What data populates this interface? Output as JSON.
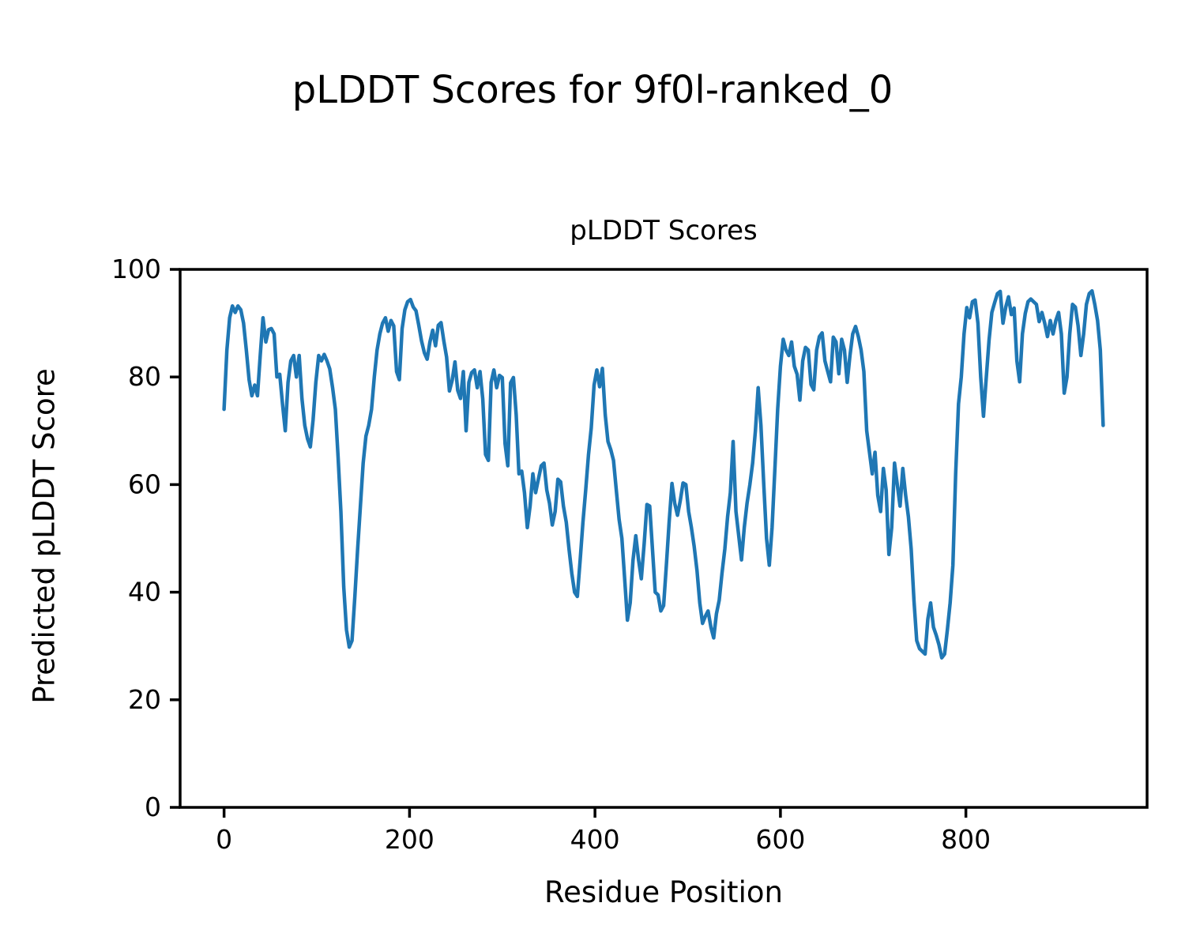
{
  "chart_data": {
    "type": "line",
    "suptitle": "pLDDT Scores for 9f0l-ranked_0",
    "title": "pLDDT Scores",
    "xlabel": "Residue Position",
    "ylabel": "Predicted pLDDT Score",
    "legend": null,
    "grid": false,
    "line_color": "#1f77b4",
    "axis_color": "#000000",
    "background_color": "#ffffff",
    "x_ticks": [
      0,
      200,
      400,
      600,
      800
    ],
    "y_ticks": [
      0,
      20,
      40,
      60,
      80,
      100
    ],
    "ylim": [
      0,
      100
    ],
    "xlim": [
      -47.4,
      995.4
    ],
    "series_name": "pLDDT",
    "x_start": 0,
    "x_step": 3,
    "values": [
      74,
      85,
      91,
      93.2,
      92,
      93.2,
      92.5,
      90,
      85,
      79.5,
      76.5,
      78.5,
      76.5,
      84,
      91,
      86.5,
      88.8,
      89,
      88,
      80,
      80.5,
      75,
      70,
      79,
      83,
      84,
      80,
      84,
      76,
      71,
      68.5,
      67,
      72,
      79,
      84,
      83,
      84.2,
      83,
      81.5,
      78,
      74,
      65,
      55,
      41,
      33,
      29.8,
      31,
      39,
      48,
      56,
      64,
      69,
      71,
      74,
      80,
      85,
      88,
      90,
      91,
      88.5,
      90.5,
      89.5,
      81,
      79.5,
      89,
      92.5,
      94,
      94.4,
      93,
      92.3,
      89.6,
      86.7,
      84.5,
      83.3,
      86.5,
      88.7,
      85.8,
      89.6,
      90.1,
      86.7,
      83.7,
      77.4,
      79.4,
      82.8,
      77.5,
      76,
      81,
      70,
      79,
      80.8,
      81.3,
      78,
      81,
      75.9,
      65.6,
      64.5,
      79,
      81.3,
      78,
      80.3,
      79.9,
      67.6,
      63.5,
      78.9,
      79.9,
      73,
      62,
      62.5,
      58.5,
      52,
      56,
      62,
      58.5,
      61,
      63.5,
      64,
      59,
      56.5,
      52.5,
      55,
      61,
      60.5,
      56,
      53,
      48,
      43.5,
      40,
      39.2,
      46,
      53,
      59,
      65.5,
      70.5,
      78.5,
      81.3,
      78.2,
      81.6,
      73,
      68,
      66.5,
      64.5,
      59,
      53.5,
      50,
      42.5,
      34.8,
      38,
      46,
      50.5,
      46,
      42.5,
      49,
      56.3,
      56,
      48,
      40,
      39.5,
      36.5,
      37.5,
      45,
      53,
      60.2,
      56.5,
      54.3,
      57,
      60.3,
      60,
      55,
      52,
      48.5,
      44,
      38,
      34.2,
      35.5,
      36.5,
      33.5,
      31.5,
      36,
      38.5,
      43.5,
      48,
      54,
      58.5,
      68,
      55,
      50.5,
      46,
      52,
      56.5,
      60,
      64,
      70,
      78,
      71,
      60,
      50,
      45,
      52,
      63,
      74,
      82,
      87,
      85,
      84,
      86.5,
      82,
      80.5,
      75.7,
      83,
      85.5,
      85,
      78.6,
      77.6,
      85,
      87.5,
      88.2,
      83,
      81,
      79.1,
      87.4,
      86.5,
      80.6,
      87,
      85,
      79,
      84,
      88,
      89.4,
      87.5,
      85,
      81,
      70,
      66,
      62,
      66,
      58,
      55,
      63,
      59,
      47,
      52,
      64,
      60,
      56,
      63,
      58,
      54,
      48,
      38.5,
      31,
      29.5,
      29,
      28.5,
      35,
      38,
      33.5,
      32,
      30.2,
      27.8,
      28.5,
      33,
      38,
      45,
      62,
      75,
      80,
      88,
      92.9,
      91,
      94,
      94.3,
      90,
      80,
      72.7,
      80,
      86.9,
      92,
      93.8,
      95.5,
      95.9,
      90,
      93,
      94.9,
      91.6,
      92.8,
      83,
      79.1,
      88,
      91.8,
      94,
      94.5,
      94,
      93.5,
      90.3,
      92,
      90,
      87.5,
      90.5,
      88,
      90.5,
      92,
      88,
      77,
      80,
      88,
      93.5,
      93,
      89.5,
      84,
      88,
      93.5,
      95.5,
      96,
      93.5,
      90.5,
      85,
      71
    ]
  }
}
